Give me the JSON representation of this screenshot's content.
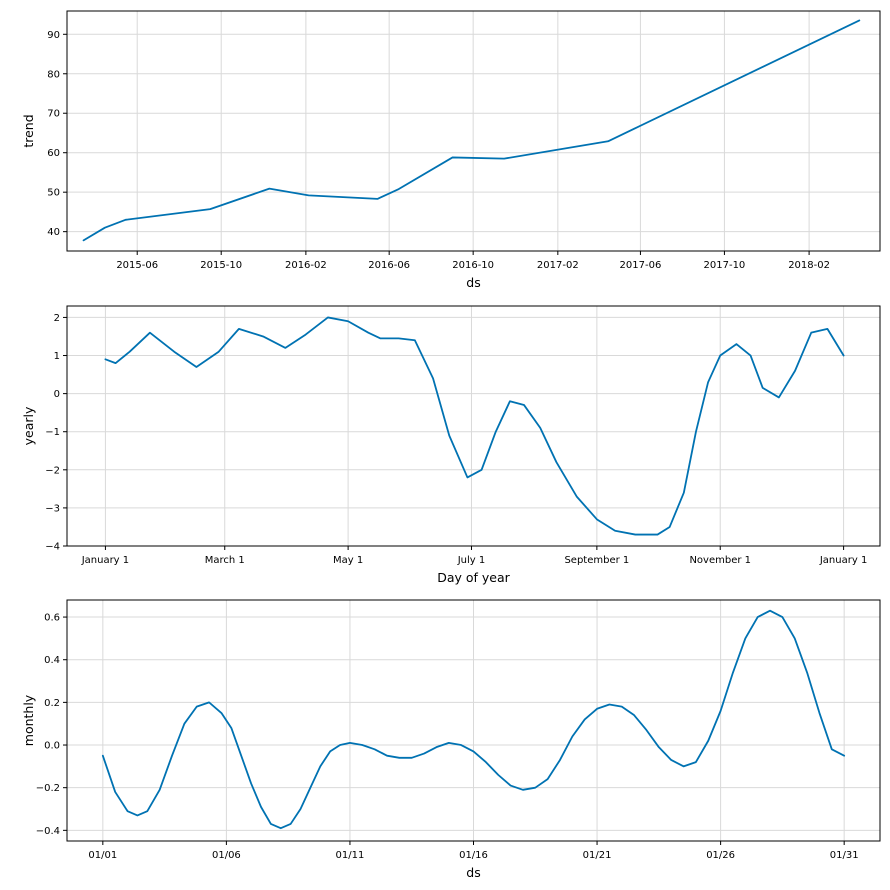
{
  "colors": {
    "line": "#0072B2",
    "grid": "#d9d9d9",
    "axis": "#000000"
  },
  "chart_data": [
    {
      "id": "trend",
      "type": "line",
      "xlabel": "ds",
      "ylabel": "trend",
      "x_type": "date",
      "xlim": [
        "2015-02-19",
        "2018-05-15"
      ],
      "ylim": [
        35.1,
        95.9
      ],
      "grid": true,
      "x_ticks": [
        {
          "value": "2015-06-01",
          "label": "2015-06"
        },
        {
          "value": "2015-10-01",
          "label": "2015-10"
        },
        {
          "value": "2016-02-01",
          "label": "2016-02"
        },
        {
          "value": "2016-06-01",
          "label": "2016-06"
        },
        {
          "value": "2016-10-01",
          "label": "2016-10"
        },
        {
          "value": "2017-02-01",
          "label": "2017-02"
        },
        {
          "value": "2017-06-01",
          "label": "2017-06"
        },
        {
          "value": "2017-10-01",
          "label": "2017-10"
        },
        {
          "value": "2018-02-01",
          "label": "2018-02"
        }
      ],
      "y_ticks": [
        {
          "value": 40,
          "label": "40"
        },
        {
          "value": 50,
          "label": "50"
        },
        {
          "value": 60,
          "label": "60"
        },
        {
          "value": 70,
          "label": "70"
        },
        {
          "value": 80,
          "label": "80"
        },
        {
          "value": 90,
          "label": "90"
        }
      ],
      "series": [
        {
          "x": [
            "2015-03-15",
            "2015-04-15",
            "2015-05-15",
            "2015-09-15",
            "2015-12-10",
            "2016-02-05",
            "2016-05-15",
            "2016-06-15",
            "2016-09-01",
            "2016-11-15",
            "2017-04-15",
            "2018-04-15"
          ],
          "y": [
            37.8,
            41.0,
            43.0,
            45.7,
            50.9,
            49.2,
            48.3,
            50.8,
            58.8,
            58.5,
            62.9,
            93.5
          ]
        }
      ]
    },
    {
      "id": "yearly",
      "type": "line",
      "xlabel": "Day of year",
      "ylabel": "yearly",
      "x_type": "date",
      "xlim": [
        "2016-12-13",
        "2018-01-19"
      ],
      "ylim": [
        -4,
        2.3
      ],
      "grid": true,
      "x_ticks": [
        {
          "value": "2017-01-01",
          "label": "January 1"
        },
        {
          "value": "2017-03-01",
          "label": "March 1"
        },
        {
          "value": "2017-05-01",
          "label": "May 1"
        },
        {
          "value": "2017-07-01",
          "label": "July 1"
        },
        {
          "value": "2017-09-01",
          "label": "September 1"
        },
        {
          "value": "2017-11-01",
          "label": "November 1"
        },
        {
          "value": "2018-01-01",
          "label": "January 1"
        }
      ],
      "y_ticks": [
        {
          "value": -4,
          "label": "−4"
        },
        {
          "value": -3,
          "label": "−3"
        },
        {
          "value": -2,
          "label": "−2"
        },
        {
          "value": -1,
          "label": "−1"
        },
        {
          "value": 0,
          "label": "0"
        },
        {
          "value": 1,
          "label": "1"
        },
        {
          "value": 2,
          "label": "2"
        }
      ],
      "series": [
        {
          "x": [
            "2017-01-01",
            "2017-01-06",
            "2017-01-13",
            "2017-01-23",
            "2017-02-04",
            "2017-02-15",
            "2017-02-26",
            "2017-03-08",
            "2017-03-20",
            "2017-03-31",
            "2017-04-10",
            "2017-04-21",
            "2017-05-01",
            "2017-05-11",
            "2017-05-17",
            "2017-05-26",
            "2017-06-03",
            "2017-06-12",
            "2017-06-20",
            "2017-06-29",
            "2017-07-06",
            "2017-07-13",
            "2017-07-20",
            "2017-07-27",
            "2017-08-04",
            "2017-08-12",
            "2017-08-22",
            "2017-09-01",
            "2017-09-10",
            "2017-09-20",
            "2017-10-01",
            "2017-10-07",
            "2017-10-14",
            "2017-10-20",
            "2017-10-26",
            "2017-11-01",
            "2017-11-09",
            "2017-11-16",
            "2017-11-22",
            "2017-11-30",
            "2017-12-08",
            "2017-12-16",
            "2017-12-24",
            "2018-01-01"
          ],
          "y": [
            0.9,
            0.8,
            1.1,
            1.6,
            1.1,
            0.7,
            1.1,
            1.7,
            1.5,
            1.2,
            1.55,
            2.0,
            1.9,
            1.6,
            1.45,
            1.45,
            1.4,
            0.4,
            -1.1,
            -2.2,
            -2.0,
            -1.0,
            -0.2,
            -0.3,
            -0.9,
            -1.8,
            -2.7,
            -3.3,
            -3.6,
            -3.7,
            -3.7,
            -3.5,
            -2.6,
            -1.0,
            0.3,
            1.0,
            1.3,
            1.0,
            0.15,
            -0.1,
            0.6,
            1.6,
            1.7,
            1.0
          ]
        }
      ]
    },
    {
      "id": "monthly",
      "type": "line",
      "xlabel": "ds",
      "ylabel": "monthly",
      "x_type": "day",
      "xlim": [
        -1.45,
        31.45
      ],
      "ylim": [
        -0.45,
        0.68
      ],
      "grid": true,
      "x_ticks": [
        {
          "value": 0,
          "label": "01/01"
        },
        {
          "value": 5,
          "label": "01/06"
        },
        {
          "value": 10,
          "label": "01/11"
        },
        {
          "value": 15,
          "label": "01/16"
        },
        {
          "value": 20,
          "label": "01/21"
        },
        {
          "value": 25,
          "label": "01/26"
        },
        {
          "value": 30,
          "label": "01/31"
        }
      ],
      "y_ticks": [
        {
          "value": -0.4,
          "label": "−0.4"
        },
        {
          "value": -0.2,
          "label": "−0.2"
        },
        {
          "value": 0.0,
          "label": "0.0"
        },
        {
          "value": 0.2,
          "label": "0.2"
        },
        {
          "value": 0.4,
          "label": "0.4"
        },
        {
          "value": 0.6,
          "label": "0.6"
        }
      ],
      "series": [
        {
          "x": [
            0,
            0.5,
            1,
            1.4,
            1.8,
            2.3,
            2.8,
            3.3,
            3.8,
            4.3,
            4.8,
            5.2,
            5.6,
            6.0,
            6.4,
            6.8,
            7.2,
            7.6,
            8.0,
            8.4,
            8.8,
            9.2,
            9.6,
            10.0,
            10.5,
            11.0,
            11.5,
            12.0,
            12.5,
            13.0,
            13.5,
            14.0,
            14.5,
            15.0,
            15.5,
            16.0,
            16.5,
            17.0,
            17.5,
            18.0,
            18.5,
            19.0,
            19.5,
            20.0,
            20.5,
            21.0,
            21.5,
            22.0,
            22.5,
            23.0,
            23.5,
            24.0,
            24.5,
            25.0,
            25.5,
            26.0,
            26.5,
            27.0,
            27.5,
            28.0,
            28.5,
            29.0,
            29.5,
            30.0
          ],
          "y": [
            -0.05,
            -0.22,
            -0.31,
            -0.33,
            -0.31,
            -0.21,
            -0.05,
            0.1,
            0.18,
            0.2,
            0.15,
            0.08,
            -0.05,
            -0.18,
            -0.29,
            -0.37,
            -0.39,
            -0.37,
            -0.3,
            -0.2,
            -0.1,
            -0.03,
            0.0,
            0.01,
            0.0,
            -0.02,
            -0.05,
            -0.06,
            -0.06,
            -0.04,
            -0.01,
            0.01,
            0.0,
            -0.03,
            -0.08,
            -0.14,
            -0.19,
            -0.21,
            -0.2,
            -0.16,
            -0.07,
            0.04,
            0.12,
            0.17,
            0.19,
            0.18,
            0.14,
            0.07,
            -0.01,
            -0.07,
            -0.1,
            -0.08,
            0.02,
            0.16,
            0.34,
            0.5,
            0.6,
            0.63,
            0.6,
            0.5,
            0.34,
            0.15,
            -0.02,
            -0.05
          ]
        }
      ]
    }
  ]
}
